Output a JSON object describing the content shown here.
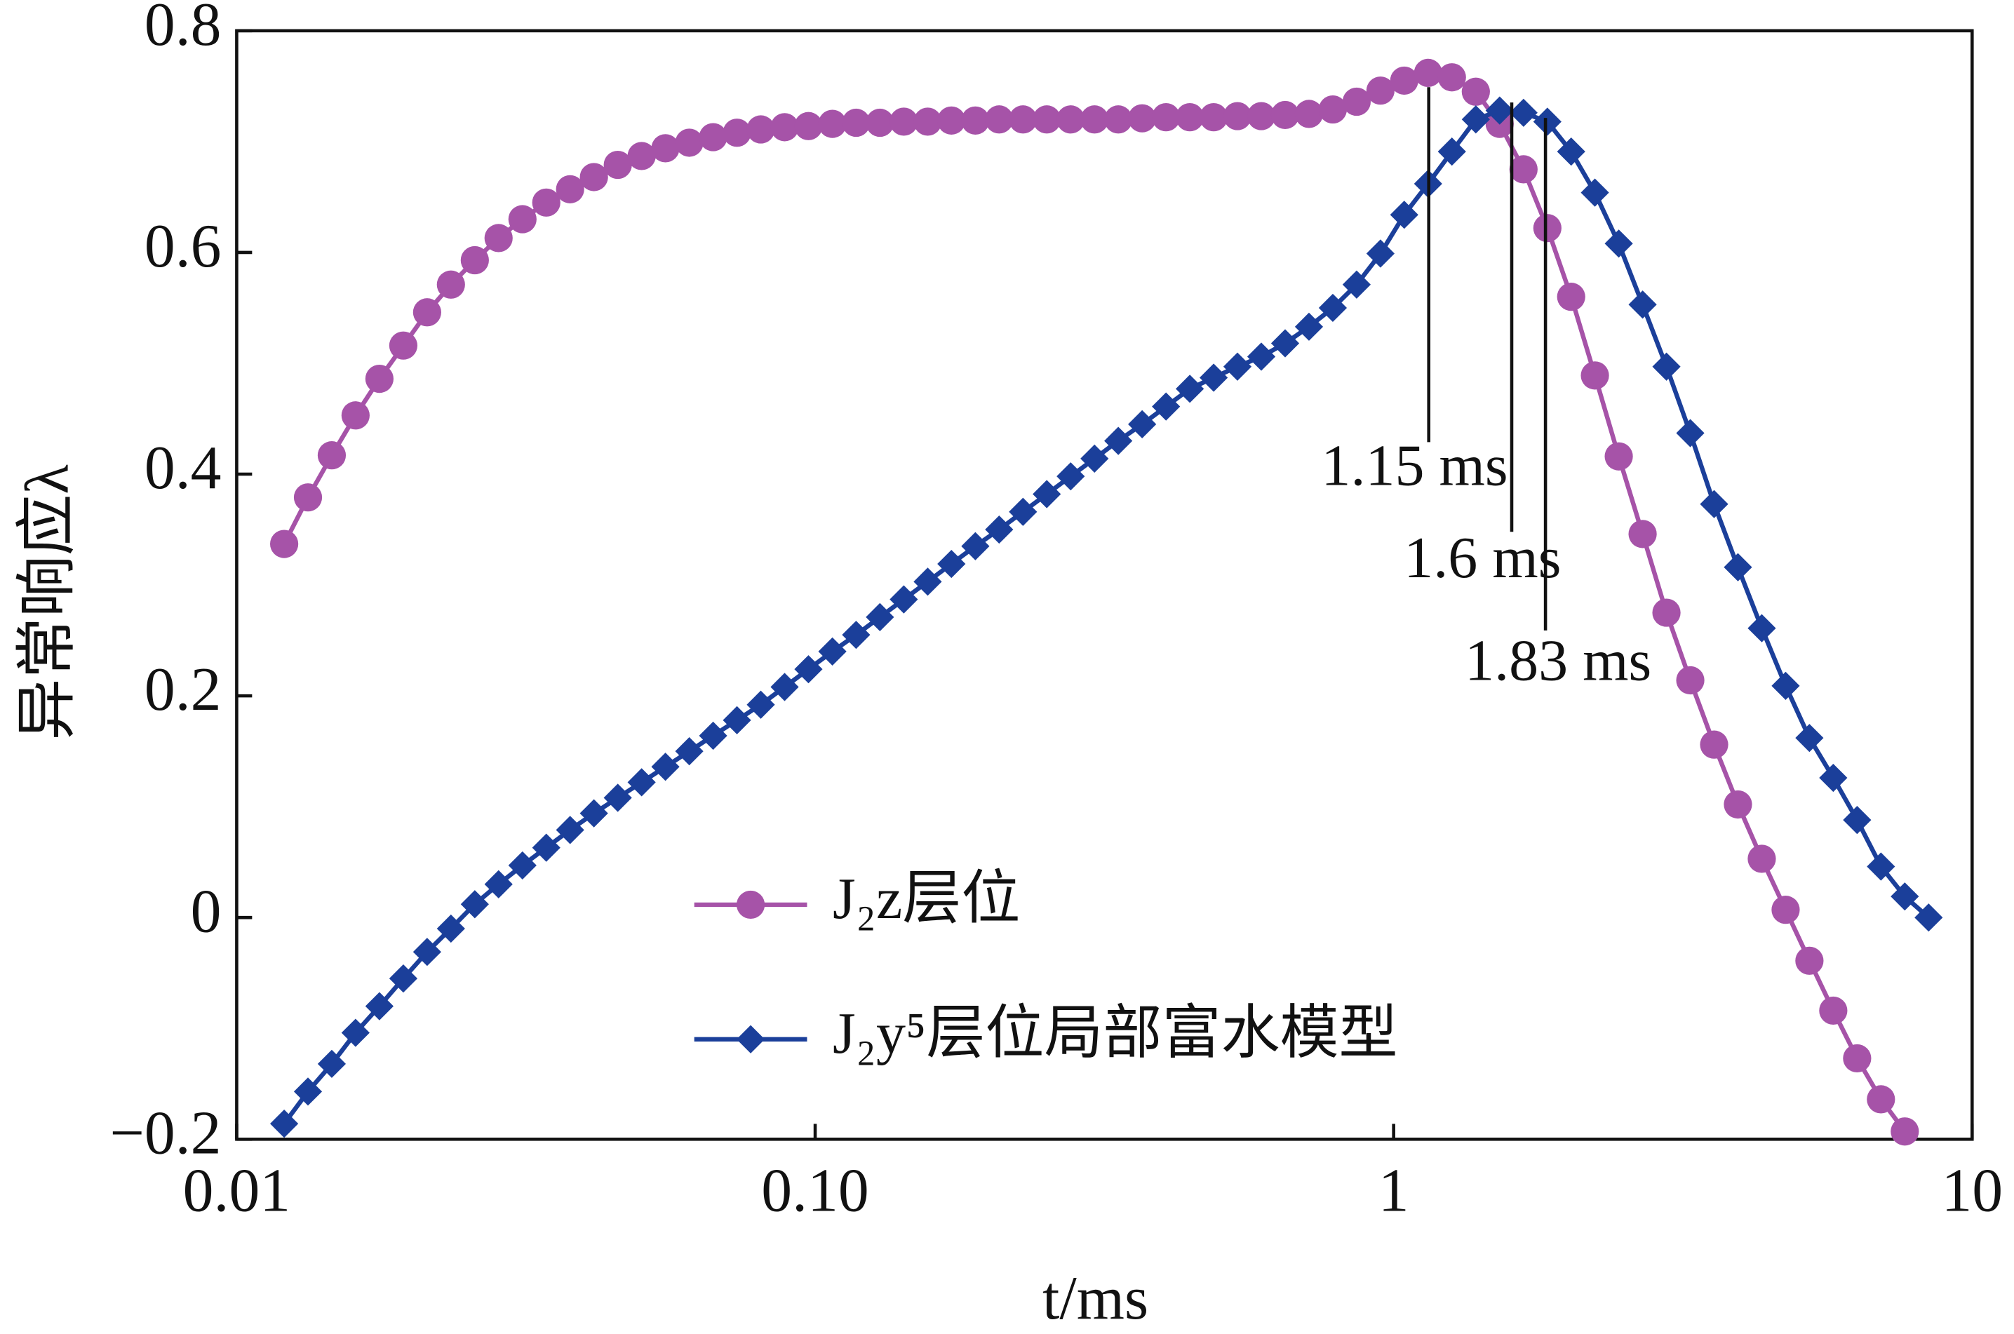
{
  "chart_data": {
    "type": "line",
    "x_label": "t/ms",
    "y_label": "异常响应λ",
    "xscale": "log",
    "xlim": [
      0.01,
      10
    ],
    "xticks": [
      0.01,
      {
        "value": 0.1,
        "label": "0.10"
      },
      1,
      10
    ],
    "ylim": [
      -0.2,
      0.8
    ],
    "yticks": [
      {
        "value": -0.2,
        "label": "−0.2"
      },
      0,
      0.2,
      0.4,
      0.6,
      0.8
    ],
    "grid": false,
    "legend": "lower center",
    "x": [
      0.01208,
      0.01328,
      0.0146,
      0.01605,
      0.01765,
      0.01941,
      0.02134,
      0.02346,
      0.0258,
      0.02836,
      0.03119,
      0.03429,
      0.0377,
      0.04145,
      0.04558,
      0.05012,
      0.0551,
      0.06059,
      0.06662,
      0.07325,
      0.08054,
      0.08855,
      0.09736,
      0.1071,
      0.1177,
      0.1294,
      0.1423,
      0.1565,
      0.172,
      0.1892,
      0.208,
      0.2287,
      0.2514,
      0.2765,
      0.304,
      0.3342,
      0.3675,
      0.4041,
      0.4443,
      0.4885,
      0.537,
      0.5905,
      0.6493,
      0.7139,
      0.7849,
      0.863,
      0.9489,
      1.043,
      1.147,
      1.261,
      1.387,
      1.525,
      1.677,
      1.844,
      2.027,
      2.228,
      2.45,
      2.694,
      2.962,
      3.257,
      3.581,
      3.937,
      4.329,
      4.76,
      5.233,
      5.754,
      6.327,
      6.956,
      7.649,
      8.41
    ],
    "series": [
      {
        "name": "J₂z层位",
        "color": "#a653a8",
        "marker": "circle",
        "values": [
          0.337,
          0.379,
          0.417,
          0.453,
          0.486,
          0.516,
          0.546,
          0.571,
          0.593,
          0.613,
          0.63,
          0.645,
          0.657,
          0.668,
          0.679,
          0.687,
          0.694,
          0.699,
          0.704,
          0.708,
          0.711,
          0.713,
          0.714,
          0.716,
          0.717,
          0.717,
          0.718,
          0.718,
          0.719,
          0.719,
          0.72,
          0.72,
          0.72,
          0.72,
          0.72,
          0.72,
          0.721,
          0.722,
          0.722,
          0.722,
          0.723,
          0.723,
          0.724,
          0.725,
          0.729,
          0.736,
          0.746,
          0.755,
          0.762,
          0.758,
          0.745,
          0.716,
          0.675,
          0.622,
          0.56,
          0.489,
          0.416,
          0.346,
          0.275,
          0.214,
          0.156,
          0.102,
          0.053,
          0.007,
          -0.039,
          -0.084,
          -0.127,
          -0.164,
          -0.193,
          null
        ]
      },
      {
        "name": "J₂y⁵层位局部富水模型",
        "color": "#1b3f9a",
        "marker": "diamond",
        "values": [
          -0.186,
          -0.157,
          -0.132,
          -0.104,
          -0.08,
          -0.055,
          -0.031,
          -0.01,
          0.012,
          0.03,
          0.047,
          0.063,
          0.079,
          0.094,
          0.108,
          0.122,
          0.136,
          0.15,
          0.164,
          0.178,
          0.192,
          0.208,
          0.224,
          0.24,
          0.255,
          0.271,
          0.287,
          0.303,
          0.319,
          0.335,
          0.35,
          0.366,
          0.382,
          0.398,
          0.414,
          0.43,
          0.445,
          0.461,
          0.477,
          0.487,
          0.497,
          0.506,
          0.518,
          0.533,
          0.55,
          0.571,
          0.599,
          0.634,
          0.662,
          0.691,
          0.72,
          0.728,
          0.726,
          0.718,
          0.691,
          0.654,
          0.608,
          0.553,
          0.497,
          0.437,
          0.373,
          0.316,
          0.261,
          0.209,
          0.162,
          0.126,
          0.088,
          0.046,
          0.019,
          0.0
        ]
      }
    ],
    "annotations": [
      {
        "text": "1.15 ms",
        "x": 1.15
      },
      {
        "text": "1.6 ms",
        "x": 1.6
      },
      {
        "text": "1.83 ms",
        "x": 1.83
      }
    ]
  }
}
